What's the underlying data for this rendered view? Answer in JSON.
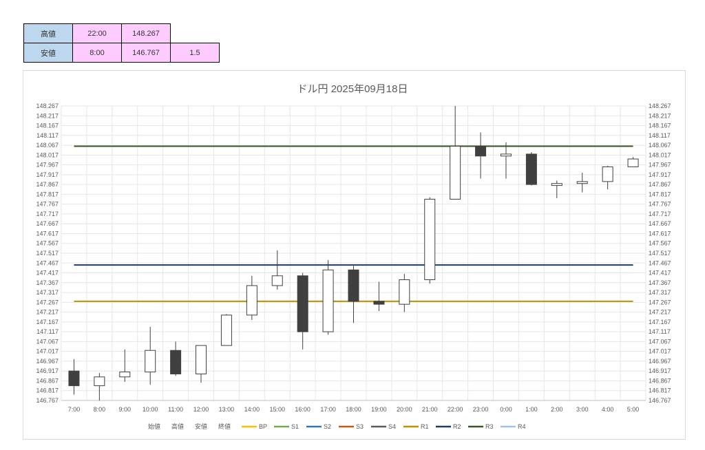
{
  "summary": {
    "high_label": "高値",
    "high_time": "22:00",
    "high_value": "148.267",
    "low_label": "安値",
    "low_time": "8:00",
    "low_value": "146.767",
    "low_extra": "1.5"
  },
  "chart_data": {
    "type": "candlestick",
    "title": "ドル円  2025年09月18日",
    "ylim": [
      146.767,
      148.267
    ],
    "ytick_step": 0.05,
    "categories": [
      "7:00",
      "8:00",
      "9:00",
      "10:00",
      "11:00",
      "12:00",
      "13:00",
      "14:00",
      "15:00",
      "16:00",
      "17:00",
      "18:00",
      "19:00",
      "20:00",
      "21:00",
      "22:00",
      "23:00",
      "0:00",
      "1:00",
      "2:00",
      "3:00",
      "4:00",
      "5:00"
    ],
    "candles": [
      {
        "open": 146.917,
        "high": 146.977,
        "low": 146.797,
        "close": 146.842
      },
      {
        "open": 146.842,
        "high": 146.907,
        "low": 146.767,
        "close": 146.887
      },
      {
        "open": 146.887,
        "high": 147.027,
        "low": 146.862,
        "close": 146.912
      },
      {
        "open": 146.912,
        "high": 147.142,
        "low": 146.847,
        "close": 147.022
      },
      {
        "open": 147.022,
        "high": 147.067,
        "low": 146.892,
        "close": 146.902
      },
      {
        "open": 146.902,
        "high": 147.047,
        "low": 146.857,
        "close": 147.047
      },
      {
        "open": 147.047,
        "high": 147.207,
        "low": 147.047,
        "close": 147.202
      },
      {
        "open": 147.202,
        "high": 147.402,
        "low": 147.177,
        "close": 147.352
      },
      {
        "open": 147.352,
        "high": 147.532,
        "low": 147.332,
        "close": 147.402
      },
      {
        "open": 147.402,
        "high": 147.417,
        "low": 147.027,
        "close": 147.117
      },
      {
        "open": 147.117,
        "high": 147.482,
        "low": 147.102,
        "close": 147.432
      },
      {
        "open": 147.432,
        "high": 147.452,
        "low": 147.162,
        "close": 147.272
      },
      {
        "open": 147.272,
        "high": 147.372,
        "low": 147.222,
        "close": 147.257
      },
      {
        "open": 147.257,
        "high": 147.412,
        "low": 147.217,
        "close": 147.382
      },
      {
        "open": 147.382,
        "high": 147.802,
        "low": 147.362,
        "close": 147.792
      },
      {
        "open": 147.792,
        "high": 148.267,
        "low": 147.792,
        "close": 148.062
      },
      {
        "open": 148.062,
        "high": 148.132,
        "low": 147.897,
        "close": 148.012
      },
      {
        "open": 148.012,
        "high": 148.082,
        "low": 147.897,
        "close": 148.022
      },
      {
        "open": 148.022,
        "high": 148.032,
        "low": 147.862,
        "close": 147.867
      },
      {
        "open": 147.862,
        "high": 147.887,
        "low": 147.797,
        "close": 147.872
      },
      {
        "open": 147.872,
        "high": 147.927,
        "low": 147.827,
        "close": 147.882
      },
      {
        "open": 147.882,
        "high": 147.962,
        "low": 147.842,
        "close": 147.957
      },
      {
        "open": 147.957,
        "high": 148.007,
        "low": 147.957,
        "close": 147.997
      }
    ],
    "levels": [
      {
        "name": "R1",
        "value": 147.272,
        "color": "#bf9000"
      },
      {
        "name": "R2",
        "value": 147.457,
        "color": "#203864"
      },
      {
        "name": "R3",
        "value": 148.062,
        "color": "#375623"
      }
    ],
    "legend": [
      {
        "name": "始値",
        "swatch": false
      },
      {
        "name": "高値",
        "swatch": false
      },
      {
        "name": "安値",
        "swatch": false
      },
      {
        "name": "終値",
        "swatch": false
      },
      {
        "name": "BP",
        "swatch": true,
        "color": "#ffc000"
      },
      {
        "name": "S1",
        "swatch": true,
        "color": "#70ad47"
      },
      {
        "name": "S2",
        "swatch": true,
        "color": "#2e75b6"
      },
      {
        "name": "S3",
        "swatch": true,
        "color": "#c55a11"
      },
      {
        "name": "S4",
        "swatch": true,
        "color": "#595959"
      },
      {
        "name": "R1",
        "swatch": true,
        "color": "#bf9000"
      },
      {
        "name": "R2",
        "swatch": true,
        "color": "#203864"
      },
      {
        "name": "R3",
        "swatch": true,
        "color": "#375623"
      },
      {
        "name": "R4",
        "swatch": true,
        "color": "#9dc3e6"
      }
    ],
    "grid": true,
    "legend_position": "bottom",
    "bear_color": "#404040",
    "bull_color": "#ffffff"
  }
}
